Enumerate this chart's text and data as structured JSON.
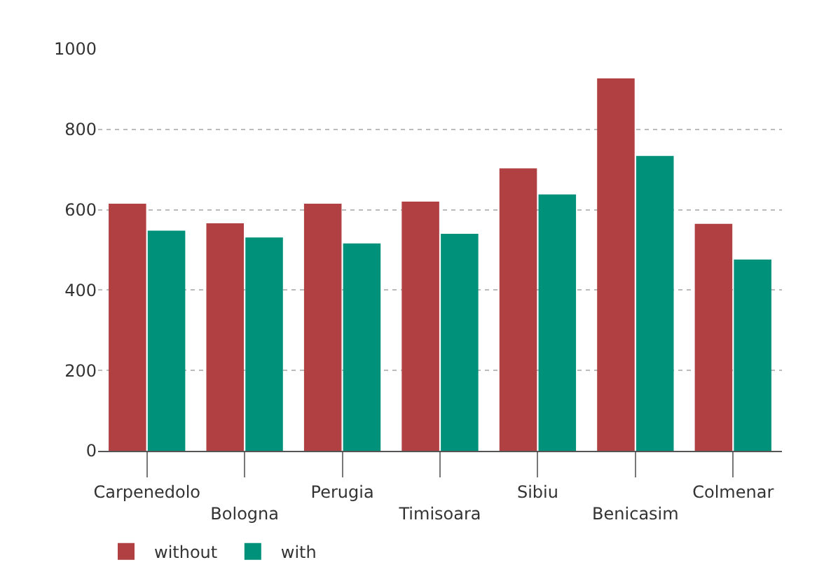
{
  "chart_data": {
    "type": "bar",
    "categories": [
      "Carpenedolo",
      "Bologna",
      "Perugia",
      "Timisoara",
      "Sibiu",
      "Benicasim",
      "Colmenar"
    ],
    "series": [
      {
        "name": "without",
        "color": "#b04042",
        "values": [
          615,
          566,
          615,
          620,
          703,
          927,
          565
        ]
      },
      {
        "name": "with",
        "color": "#00917a",
        "values": [
          548,
          531,
          516,
          540,
          638,
          734,
          476
        ]
      }
    ],
    "ylim": [
      0,
      1000
    ],
    "yticks": [
      0,
      200,
      400,
      600,
      800,
      1000
    ],
    "grid": "y",
    "legend": "bottom left"
  }
}
